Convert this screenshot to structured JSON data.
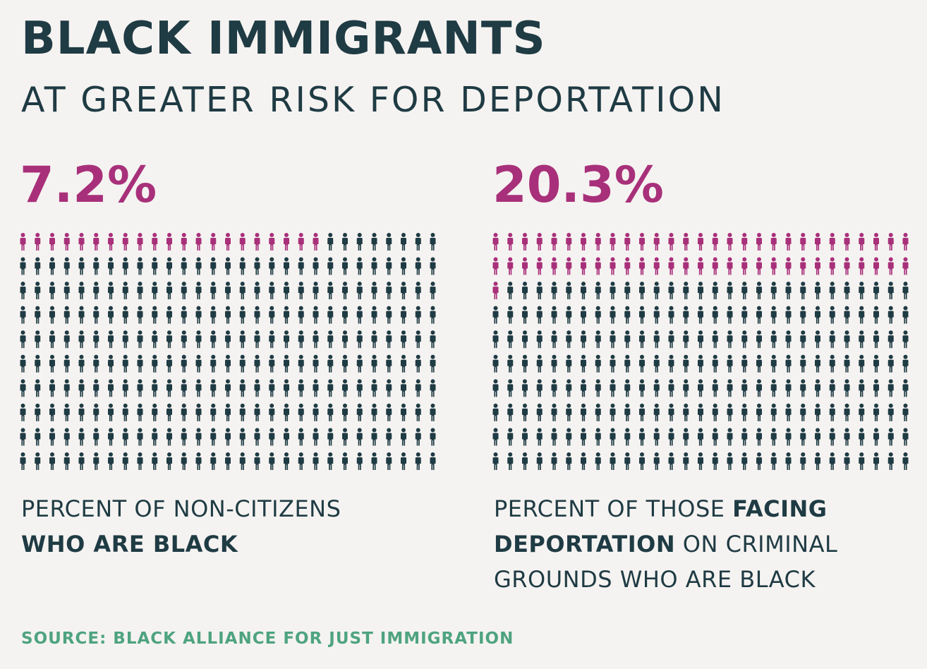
{
  "header": {
    "title": "BLACK IMMIGRANTS",
    "subtitle": "AT GREATER RISK FOR DEPORTATION"
  },
  "colors": {
    "highlight": "#a8307a",
    "base": "#1f3b44",
    "source": "#4ea380",
    "background": "#f5f3f1"
  },
  "panels": [
    {
      "percent_label": "7.2%",
      "desc_parts": [
        {
          "text": "PERCENT OF NON-CITIZENS",
          "bold": false
        },
        {
          "text": "WHO ARE BLACK",
          "bold": true
        }
      ]
    },
    {
      "percent_label": "20.3%",
      "desc_parts": [
        {
          "text": "PERCENT OF THOSE ",
          "bold": false
        },
        {
          "text": "FACING DEPORTATION",
          "bold": true
        },
        {
          "text": " ON CRIMINAL GROUNDS WHO ARE BLACK",
          "bold": false
        }
      ]
    }
  ],
  "chart_data": [
    {
      "type": "waffle",
      "rows": 10,
      "cols": 29,
      "highlighted_count": 21,
      "total_count": 290,
      "value_percent": 7.2
    },
    {
      "type": "waffle",
      "rows": 10,
      "cols": 29,
      "highlighted_count": 59,
      "total_count": 290,
      "value_percent": 20.3
    }
  ],
  "source": "SOURCE: BLACK ALLIANCE FOR JUST IMMIGRATION"
}
